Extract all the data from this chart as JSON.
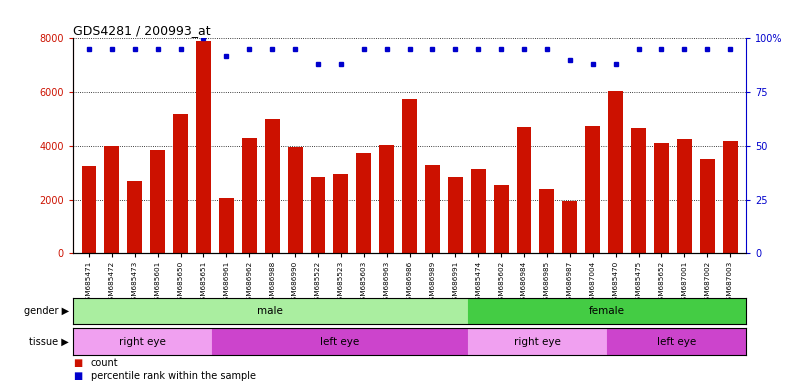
{
  "title": "GDS4281 / 200993_at",
  "samples": [
    "GSM685471",
    "GSM685472",
    "GSM685473",
    "GSM685601",
    "GSM685650",
    "GSM685651",
    "GSM686961",
    "GSM686962",
    "GSM686988",
    "GSM686990",
    "GSM685522",
    "GSM685523",
    "GSM685603",
    "GSM686963",
    "GSM686986",
    "GSM686989",
    "GSM686991",
    "GSM685474",
    "GSM685602",
    "GSM686984",
    "GSM686985",
    "GSM686987",
    "GSM687004",
    "GSM685470",
    "GSM685475",
    "GSM685652",
    "GSM687001",
    "GSM687002",
    "GSM687003"
  ],
  "counts": [
    3250,
    4000,
    2700,
    3850,
    5200,
    7900,
    2050,
    4300,
    5000,
    3950,
    2850,
    2950,
    3750,
    4050,
    5750,
    3300,
    2850,
    3150,
    2550,
    4700,
    2400,
    1950,
    4750,
    6050,
    4650,
    4100,
    4250,
    3500,
    4200
  ],
  "percentile_rank": [
    95,
    95,
    95,
    95,
    95,
    100,
    92,
    95,
    95,
    95,
    88,
    88,
    95,
    95,
    95,
    95,
    95,
    95,
    95,
    95,
    95,
    90,
    88,
    88,
    95,
    95,
    95,
    95,
    95
  ],
  "gender_groups": [
    {
      "label": "male",
      "start": 0,
      "end": 17,
      "color": "#aaeea0"
    },
    {
      "label": "female",
      "start": 17,
      "end": 29,
      "color": "#44cc44"
    }
  ],
  "tissue_groups": [
    {
      "label": "right eye",
      "start": 0,
      "end": 6,
      "color": "#f0a0f0"
    },
    {
      "label": "left eye",
      "start": 6,
      "end": 17,
      "color": "#cc44cc"
    },
    {
      "label": "right eye",
      "start": 17,
      "end": 23,
      "color": "#f0a0f0"
    },
    {
      "label": "left eye",
      "start": 23,
      "end": 29,
      "color": "#cc44cc"
    }
  ],
  "bar_color": "#cc1100",
  "dot_color": "#0000cc",
  "left_ylim": [
    0,
    8000
  ],
  "right_ylim": [
    0,
    100
  ],
  "left_yticks": [
    0,
    2000,
    4000,
    6000,
    8000
  ],
  "right_yticks": [
    0,
    25,
    50,
    75,
    100
  ],
  "right_yticklabels": [
    "0",
    "25",
    "50",
    "75",
    "100%"
  ]
}
